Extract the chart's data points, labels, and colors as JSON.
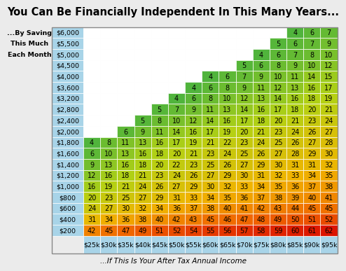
{
  "title": "You Can Be Financially Independent In This Many Years...",
  "subtitle": "...If This Is Your After Tax Annual Income",
  "left_label1": "...By Saving",
  "left_label2": "This Much",
  "left_label3": "Each Month",
  "row_labels": [
    "$6,000",
    "$5,500",
    "$5,000",
    "$4,500",
    "$4,000",
    "$3,600",
    "$3,200",
    "$2,800",
    "$2,400",
    "$2,000",
    "$1,800",
    "$1,600",
    "$1,400",
    "$1,200",
    "$1,000",
    "$800",
    "$600",
    "$400",
    "$200"
  ],
  "col_labels": [
    "$25k",
    "$30k",
    "$35k",
    "$40k",
    "$45k",
    "$50k",
    "$55k",
    "$60k",
    "$65k",
    "$70k",
    "$75k",
    "$80k",
    "$85k",
    "$90k",
    "$95k"
  ],
  "table_data": [
    [
      null,
      null,
      null,
      null,
      null,
      null,
      null,
      null,
      null,
      null,
      null,
      null,
      4,
      6,
      7
    ],
    [
      null,
      null,
      null,
      null,
      null,
      null,
      null,
      null,
      null,
      null,
      null,
      5,
      6,
      7,
      9
    ],
    [
      null,
      null,
      null,
      null,
      null,
      null,
      null,
      null,
      null,
      null,
      4,
      6,
      7,
      8,
      10
    ],
    [
      null,
      null,
      null,
      null,
      null,
      null,
      null,
      null,
      null,
      5,
      6,
      8,
      9,
      10,
      12
    ],
    [
      null,
      null,
      null,
      null,
      null,
      null,
      null,
      4,
      6,
      7,
      9,
      10,
      11,
      14,
      15
    ],
    [
      null,
      null,
      null,
      null,
      null,
      null,
      4,
      6,
      8,
      9,
      11,
      12,
      13,
      16,
      17
    ],
    [
      null,
      null,
      null,
      null,
      null,
      4,
      6,
      8,
      10,
      12,
      13,
      14,
      16,
      18,
      19
    ],
    [
      null,
      null,
      null,
      null,
      5,
      7,
      9,
      11,
      13,
      14,
      16,
      17,
      18,
      20,
      21
    ],
    [
      null,
      null,
      null,
      5,
      8,
      10,
      12,
      14,
      16,
      17,
      18,
      20,
      21,
      23,
      24
    ],
    [
      null,
      null,
      6,
      9,
      11,
      14,
      16,
      17,
      19,
      20,
      21,
      23,
      24,
      26,
      27
    ],
    [
      4,
      8,
      11,
      13,
      16,
      17,
      19,
      21,
      22,
      23,
      24,
      25,
      26,
      27,
      28
    ],
    [
      6,
      10,
      13,
      16,
      18,
      20,
      21,
      23,
      24,
      25,
      26,
      27,
      28,
      29,
      30
    ],
    [
      9,
      13,
      16,
      18,
      20,
      22,
      23,
      25,
      26,
      27,
      29,
      30,
      31,
      31,
      32
    ],
    [
      12,
      16,
      18,
      21,
      23,
      24,
      26,
      27,
      29,
      30,
      31,
      32,
      33,
      34,
      35
    ],
    [
      16,
      19,
      21,
      24,
      26,
      27,
      29,
      30,
      32,
      33,
      34,
      35,
      36,
      37,
      38
    ],
    [
      20,
      23,
      25,
      27,
      29,
      31,
      33,
      34,
      35,
      36,
      37,
      38,
      39,
      40,
      41
    ],
    [
      24,
      27,
      30,
      32,
      34,
      36,
      37,
      38,
      40,
      41,
      42,
      43,
      44,
      45,
      45
    ],
    [
      31,
      34,
      36,
      38,
      40,
      42,
      43,
      45,
      46,
      47,
      48,
      49,
      50,
      51,
      52
    ],
    [
      42,
      45,
      47,
      49,
      51,
      52,
      54,
      55,
      56,
      57,
      58,
      59,
      60,
      61,
      62
    ]
  ],
  "background_color": "#ebebeb",
  "row_label_bg": "#a8d4e8",
  "col_label_bg": "#a8d4e8",
  "empty_cell_color": "#ffffff",
  "title_fontsize": 10.5,
  "subtitle_fontsize": 7.5,
  "cell_fontsize": 7.0,
  "label_fontsize": 6.8
}
